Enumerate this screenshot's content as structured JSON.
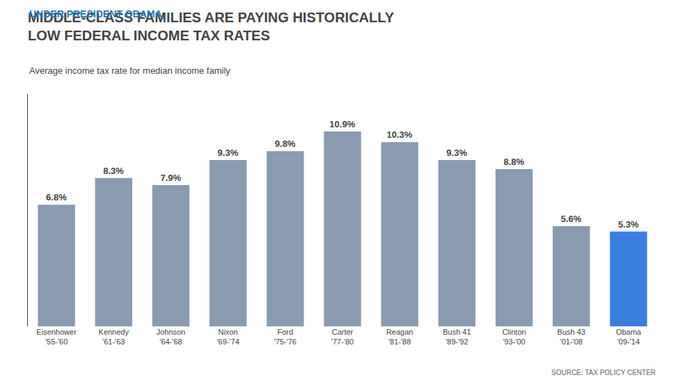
{
  "chart_data": {
    "type": "bar",
    "title": "MIDDLE-CLASS FAMILIES ARE PAYING HISTORICALLY\nLOW FEDERAL INCOME TAX RATES",
    "subtitle": "Average income tax rate for median income family",
    "annotations": [
      "UNDER PRESIDENT OBAMA,",
      "SOURCE: TAX POLICY CENTER"
    ],
    "categories": [
      "Eisenhower\n'55-'60",
      "Kennedy\n'61-'63",
      "Johnson\n'64-'68",
      "Nixon\n'69-'74",
      "Ford\n'75-'76",
      "Carter\n'77-'80",
      "Reagan\n'81-'88",
      "Bush 41\n'89-'92",
      "Clinton\n'93-'00",
      "Bush 43\n'01-'08",
      "Obama\n'09-'14"
    ],
    "values": [
      6.8,
      8.3,
      7.9,
      9.3,
      9.8,
      10.9,
      10.3,
      9.3,
      8.8,
      5.6,
      5.3
    ],
    "value_labels": [
      "6.8%",
      "8.3%",
      "7.9%",
      "9.3%",
      "9.8%",
      "10.9%",
      "10.3%",
      "9.3%",
      "8.8%",
      "5.6%",
      "5.3%"
    ],
    "colors": [
      "#8a9ab0",
      "#8a9ab0",
      "#8a9ab0",
      "#8a9ab0",
      "#8a9ab0",
      "#8a9ab0",
      "#8a9ab0",
      "#8a9ab0",
      "#8a9ab0",
      "#8a9ab0",
      "#3a7fdf"
    ],
    "ylim": [
      0,
      13.0
    ],
    "grid": false,
    "data_labels": true,
    "tick_labels": "x"
  }
}
